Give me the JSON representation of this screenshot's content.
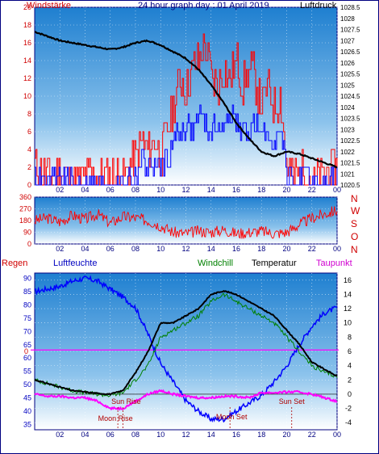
{
  "header": {
    "left_label": "Windstärke",
    "title": "24 hour graph day : 01 April 2019",
    "right_label": "Luftdruck"
  },
  "lower_legend": {
    "rain": "Regen",
    "humidity": "Luftfeuchte",
    "windchill": "Windchill",
    "temperature": "Temperatur",
    "dewpoint": "Taupunkt"
  },
  "annotations": {
    "sun_rise": "Sun Rise",
    "moon_rise": "Moon Rise",
    "moon_set": "Moon Set",
    "sun_set": "Sun Set"
  },
  "colors": {
    "gust": "#ff0000",
    "wind": "#0000ff",
    "pressure": "#000000",
    "direction": "#ff0000",
    "humidity": "#0000ff",
    "windchill": "#008000",
    "temperature": "#000000",
    "dewpoint": "#ff00ff",
    "rain_zero": "#ff00ff",
    "sky_top": "#1e7fd0",
    "sky_bottom": "#ffffff"
  },
  "chart_data": [
    {
      "type": "line",
      "name": "wind_pressure",
      "x_ticks": [
        "02",
        "04",
        "06",
        "08",
        "10",
        "12",
        "14",
        "16",
        "18",
        "20",
        "22",
        "00"
      ],
      "y_left_ticks": [
        "0",
        "2",
        "4",
        "6",
        "8",
        "10",
        "12",
        "14",
        "16",
        "18",
        "20"
      ],
      "y_left_range": [
        0,
        20
      ],
      "y_right_ticks": [
        "1020.5",
        "1021",
        "1021.5",
        "1022",
        "1022.5",
        "1023",
        "1023.5",
        "1024",
        "1024.5",
        "1025",
        "1025.5",
        "1026",
        "1026.5",
        "1027",
        "1027.5",
        "1028",
        "1028.5"
      ],
      "y_right_range": [
        1020.5,
        1028.5
      ],
      "series": [
        {
          "key": "gust",
          "axis": "left",
          "x": [
            0,
            1,
            2,
            3,
            4,
            5,
            6,
            7,
            7.5,
            8,
            8.5,
            9,
            9.5,
            10,
            10.5,
            11,
            11.5,
            12,
            12.5,
            13,
            13.5,
            14,
            14.5,
            15,
            15.5,
            16,
            16.5,
            17,
            17.5,
            18,
            18.5,
            19,
            19.5,
            20,
            20.5,
            21,
            21.5,
            22,
            22.5,
            23,
            23.5,
            24
          ],
          "values": [
            2,
            1,
            2,
            0,
            1,
            1,
            1,
            1,
            2,
            3,
            5,
            4,
            5,
            3,
            6,
            9,
            12,
            11,
            13,
            14,
            16,
            12,
            11,
            13,
            12,
            14,
            11,
            13,
            12,
            9,
            11,
            9,
            10,
            2,
            1,
            1,
            2,
            0,
            1,
            1,
            2,
            2
          ]
        },
        {
          "key": "wind",
          "axis": "left",
          "x": [
            0,
            1,
            2,
            3,
            4,
            5,
            6,
            7,
            7.5,
            8,
            8.5,
            9,
            9.5,
            10,
            10.5,
            11,
            11.5,
            12,
            12.5,
            13,
            13.5,
            14,
            14.5,
            15,
            15.5,
            16,
            16.5,
            17,
            17.5,
            18,
            18.5,
            19,
            19.5,
            20,
            20.5,
            21,
            21.5,
            22,
            22.5,
            23,
            23.5,
            24
          ],
          "values": [
            1,
            0,
            1,
            0,
            0,
            0,
            0,
            0,
            1,
            1,
            3,
            2,
            2,
            2,
            3,
            5,
            6,
            7,
            6,
            8,
            7,
            6,
            7,
            6,
            8,
            7,
            6,
            6,
            7,
            5,
            6,
            5,
            6,
            1,
            0,
            0,
            1,
            0,
            0,
            0,
            1,
            1
          ]
        },
        {
          "key": "pressure",
          "axis": "right",
          "x": [
            0,
            1,
            2,
            3,
            4,
            5,
            6,
            7,
            8,
            9,
            10,
            11,
            12,
            13,
            14,
            15,
            16,
            17,
            18,
            19,
            20,
            21,
            22,
            23,
            24
          ],
          "values": [
            1027.4,
            1027.2,
            1027.0,
            1026.9,
            1026.8,
            1026.7,
            1026.6,
            1026.7,
            1026.9,
            1027.0,
            1026.8,
            1026.5,
            1026.2,
            1025.7,
            1025.0,
            1024.2,
            1023.3,
            1022.6,
            1022.0,
            1021.8,
            1022.0,
            1021.9,
            1021.7,
            1021.5,
            1021.3
          ]
        }
      ]
    },
    {
      "type": "line",
      "name": "wind_direction",
      "x_ticks": [
        "02",
        "04",
        "06",
        "08",
        "10",
        "12",
        "14",
        "16",
        "18",
        "20",
        "22",
        "00"
      ],
      "y_ticks": [
        "0",
        "90",
        "180",
        "270",
        "360"
      ],
      "y_range": [
        0,
        360
      ],
      "side_labels": [
        "N",
        "W",
        "S",
        "O",
        "N"
      ],
      "series": [
        {
          "key": "direction",
          "x": [
            0,
            1,
            2,
            3,
            4,
            5,
            6,
            7,
            8,
            9,
            10,
            11,
            12,
            13,
            14,
            15,
            16,
            17,
            18,
            19,
            20,
            21,
            22,
            23,
            24
          ],
          "values": [
            180,
            200,
            170,
            220,
            190,
            230,
            160,
            210,
            200,
            180,
            140,
            90,
            80,
            100,
            90,
            110,
            80,
            90,
            100,
            80,
            90,
            150,
            200,
            230,
            260
          ]
        }
      ]
    },
    {
      "type": "line",
      "name": "temp_humidity",
      "x_ticks": [
        "02",
        "04",
        "06",
        "08",
        "10",
        "12",
        "14",
        "16",
        "18",
        "20",
        "22",
        "00"
      ],
      "y_left_ticks": [
        "35",
        "40",
        "45",
        "50",
        "55",
        "60",
        "65",
        "70",
        "75",
        "80",
        "85",
        "90"
      ],
      "y_left_range": [
        33,
        92
      ],
      "y_right_ticks": [
        "-4",
        "-2",
        "0",
        "2",
        "4",
        "6",
        "8",
        "10",
        "12",
        "14",
        "16"
      ],
      "y_right_range": [
        -5,
        17
      ],
      "rain_value": "0",
      "series": [
        {
          "key": "humidity",
          "axis": "left",
          "x": [
            0,
            1,
            2,
            3,
            4,
            5,
            6,
            7,
            8,
            9,
            10,
            11,
            12,
            13,
            14,
            15,
            16,
            17,
            18,
            19,
            20,
            21,
            22,
            23,
            24
          ],
          "values": [
            85,
            86,
            87,
            89,
            90,
            89,
            86,
            83,
            79,
            69,
            58,
            51,
            44,
            40,
            37,
            37,
            40,
            43,
            46,
            51,
            57,
            65,
            72,
            77,
            79
          ]
        },
        {
          "key": "windchill",
          "axis": "right",
          "x": [
            0,
            1,
            2,
            3,
            4,
            5,
            6,
            7,
            8,
            9,
            10,
            11,
            12,
            13,
            14,
            15,
            16,
            17,
            18,
            19,
            20,
            21,
            22,
            23,
            24
          ],
          "values": [
            2,
            1.5,
            1,
            0.5,
            0.2,
            0,
            -0.2,
            0.2,
            2,
            4,
            8,
            9,
            10,
            11,
            13,
            14,
            13,
            12,
            11,
            10,
            8,
            6,
            4,
            3,
            2.5
          ]
        },
        {
          "key": "temperature",
          "axis": "right",
          "x": [
            0,
            1,
            2,
            3,
            4,
            5,
            6,
            7,
            8,
            9,
            10,
            11,
            12,
            13,
            14,
            15,
            16,
            17,
            18,
            19,
            20,
            21,
            22,
            23,
            24
          ],
          "values": [
            2,
            1.5,
            1,
            0.5,
            0.3,
            0.1,
            0,
            0.5,
            3,
            6,
            10,
            10,
            11,
            12,
            14,
            14.5,
            14,
            13,
            12,
            11,
            9,
            7,
            4.5,
            3.5,
            2.5
          ]
        },
        {
          "key": "dewpoint",
          "axis": "right",
          "x": [
            0,
            1,
            2,
            3,
            4,
            5,
            6,
            7,
            8,
            9,
            10,
            11,
            12,
            13,
            14,
            15,
            16,
            17,
            18,
            19,
            20,
            21,
            22,
            23,
            24
          ],
          "values": [
            0,
            -0.3,
            -0.3,
            -0.5,
            -0.5,
            -1,
            -2,
            -2,
            -1,
            0,
            0.5,
            0,
            -0.3,
            -0.5,
            -0.5,
            -0.3,
            -0.3,
            -0.5,
            0.2,
            0.2,
            0.3,
            0.3,
            0,
            -0.5,
            -1
          ]
        }
      ],
      "markers": [
        {
          "key": "sun_rise",
          "hour": 7.0
        },
        {
          "key": "moon_rise",
          "hour": 6.6
        },
        {
          "key": "moon_set",
          "hour": 15.5
        },
        {
          "key": "sun_set",
          "hour": 20.4
        }
      ]
    }
  ]
}
